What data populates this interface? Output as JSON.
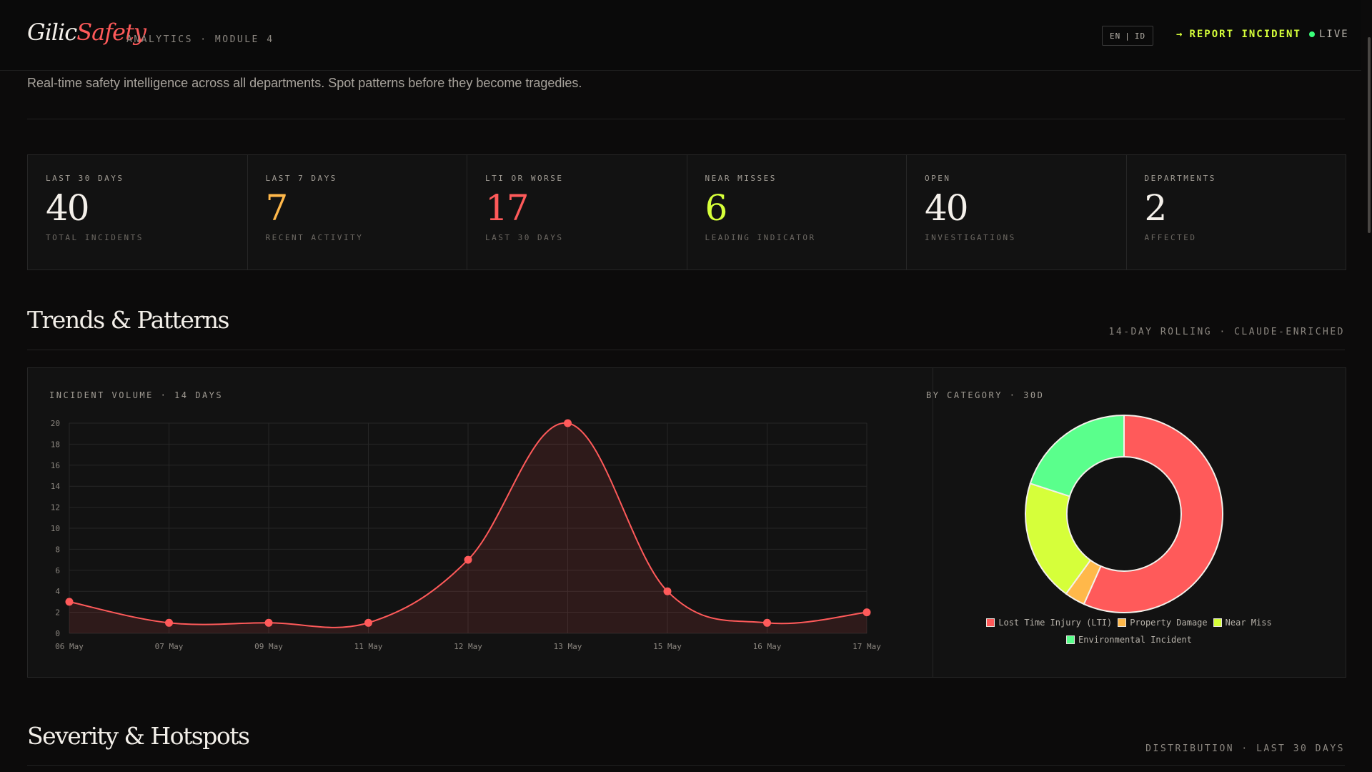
{
  "header": {
    "logo_a": "Gilic",
    "logo_b": "Safety",
    "module": "ANALYTICS · MODULE 4",
    "lang_en": "EN",
    "lang_sep": "|",
    "lang_id": "ID",
    "report_arrow": "→",
    "report_label": "REPORT INCIDENT",
    "live_label": "LIVE"
  },
  "tagline": "Real-time safety intelligence across all departments. Spot patterns before they become tragedies.",
  "kpis": [
    {
      "label": "LAST 30 DAYS",
      "value": "40",
      "sub": "TOTAL INCIDENTS",
      "color": "#f4f0ea"
    },
    {
      "label": "LAST 7 DAYS",
      "value": "7",
      "sub": "RECENT ACTIVITY",
      "color": "#ffb84a"
    },
    {
      "label": "LTI OR WORSE",
      "value": "17",
      "sub": "LAST 30 DAYS",
      "color": "#ff5a5a"
    },
    {
      "label": "NEAR MISSES",
      "value": "6",
      "sub": "LEADING INDICATOR",
      "color": "#d6ff3a"
    },
    {
      "label": "OPEN",
      "value": "40",
      "sub": "INVESTIGATIONS",
      "color": "#f4f0ea"
    },
    {
      "label": "DEPARTMENTS",
      "value": "2",
      "sub": "AFFECTED",
      "color": "#f4f0ea"
    }
  ],
  "trends": {
    "title": "Trends & Patterns",
    "meta": "14-DAY ROLLING · CLAUDE-ENRICHED",
    "line_title": "INCIDENT VOLUME · 14 DAYS",
    "donut_title": "BY CATEGORY · 30D"
  },
  "severity": {
    "title": "Severity & Hotspots",
    "meta": "DISTRIBUTION · LAST 30 DAYS"
  },
  "chart_data": [
    {
      "type": "line",
      "x": [
        "06 May",
        "07 May",
        "09 May",
        "11 May",
        "12 May",
        "13 May",
        "15 May",
        "16 May",
        "17 May"
      ],
      "values": [
        3,
        1,
        1,
        1,
        7,
        20,
        4,
        1,
        2
      ],
      "ylim": [
        0,
        20
      ],
      "yticks": [
        0,
        2,
        4,
        6,
        8,
        10,
        12,
        14,
        16,
        18,
        20
      ],
      "grid": true,
      "color": "#ff5a5a"
    },
    {
      "type": "pie",
      "donut": true,
      "legend_position": "bottom",
      "slices": [
        {
          "label": "Lost Time Injury (LTI)",
          "value": 17,
          "color": "#ff5a5a"
        },
        {
          "label": "Property Damage",
          "value": 1,
          "color": "#ffb84a"
        },
        {
          "label": "Near Miss",
          "value": 6,
          "color": "#d6ff3a"
        },
        {
          "label": "Environmental Incident",
          "value": 6,
          "color": "#5aff8c"
        }
      ]
    }
  ]
}
